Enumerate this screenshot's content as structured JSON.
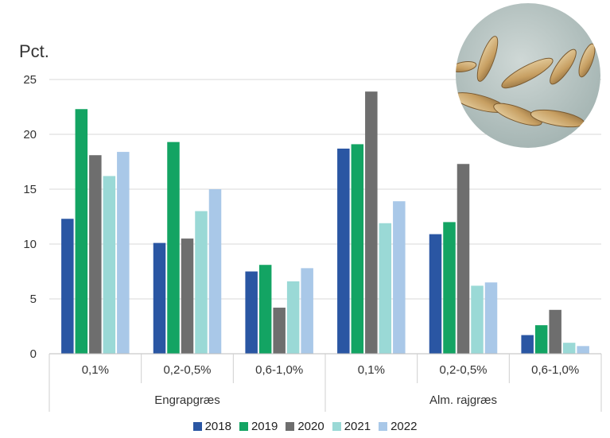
{
  "chart_data": {
    "type": "bar",
    "ylabel": "Pct.",
    "ylim": [
      0,
      25
    ],
    "yticks": [
      0,
      5,
      10,
      15,
      20,
      25
    ],
    "grid": true,
    "legend_position": "bottom",
    "groups": [
      {
        "label": "Engrapgræs",
        "categories": [
          "0,1%",
          "0,2-0,5%",
          "0,6-1,0%"
        ]
      },
      {
        "label": "Alm. rajgræs",
        "categories": [
          "0,1%",
          "0,2-0,5%",
          "0,6-1,0%"
        ]
      }
    ],
    "series": [
      {
        "name": "2018",
        "color": "#2a56a3",
        "values": [
          12.3,
          10.1,
          7.5,
          18.7,
          10.9,
          1.7
        ]
      },
      {
        "name": "2019",
        "color": "#13a463",
        "values": [
          22.3,
          19.3,
          8.1,
          19.1,
          12.0,
          2.6
        ]
      },
      {
        "name": "2020",
        "color": "#6e6e6e",
        "values": [
          18.1,
          10.5,
          4.2,
          23.9,
          17.3,
          4.0
        ]
      },
      {
        "name": "2021",
        "color": "#9ad9d6",
        "values": [
          16.2,
          13.0,
          6.6,
          11.9,
          6.2,
          1.0
        ]
      },
      {
        "name": "2022",
        "color": "#a9c8e8",
        "values": [
          18.4,
          15.0,
          7.8,
          13.9,
          6.5,
          0.7
        ]
      }
    ]
  }
}
